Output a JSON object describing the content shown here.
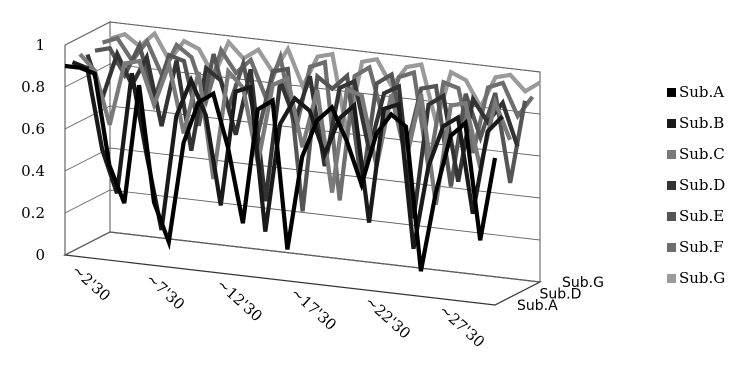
{
  "chart_data": {
    "type": "line",
    "projection": "3d",
    "title": "",
    "xlabel": "",
    "ylabel": "",
    "ylim": [
      0,
      1
    ],
    "y_ticks": [
      "0",
      "0.2",
      "0.4",
      "0.6",
      "0.8",
      "1"
    ],
    "x_tick_labels": [
      "~2'30",
      "~7'30",
      "~12'30",
      "~17'30",
      "~22'30",
      "~27'30"
    ],
    "x_tick_positions": [
      1,
      6,
      11,
      16,
      21,
      26
    ],
    "depth_tick_labels": [
      "Sub.A",
      "Sub.D",
      "Sub.G"
    ],
    "grid": true,
    "legend_position": "right",
    "series": [
      {
        "name": "Sub.A",
        "color": "#000000",
        "values": [
          0.9,
          0.9,
          0.88,
          0.45,
          0.28,
          0.85,
          0.3,
          0.12,
          0.6,
          0.8,
          0.85,
          0.6,
          0.25,
          0.8,
          0.85,
          0.15,
          0.6,
          0.78,
          0.85,
          0.7,
          0.5,
          0.75,
          0.85,
          0.8,
          0.12,
          0.5,
          0.78,
          0.85,
          0.3,
          0.7
        ]
      },
      {
        "name": "Sub.B",
        "color": "#1a1a1a",
        "values": [
          0.9,
          0.88,
          0.5,
          0.3,
          0.88,
          0.5,
          0.15,
          0.7,
          0.88,
          0.72,
          0.3,
          0.85,
          0.88,
          0.2,
          0.72,
          0.85,
          0.8,
          0.6,
          0.78,
          0.85,
          0.3,
          0.85,
          0.88,
          0.2,
          0.6,
          0.8,
          0.85,
          0.4,
          0.8,
          0.88
        ]
      },
      {
        "name": "Sub.C",
        "color": "#7a7a7a",
        "values": [
          0.92,
          0.85,
          0.6,
          0.9,
          0.92,
          0.72,
          0.92,
          0.6,
          0.9,
          0.4,
          0.92,
          0.85,
          0.5,
          0.88,
          0.92,
          0.6,
          0.88,
          0.4,
          0.9,
          0.88,
          0.55,
          0.9,
          0.6,
          0.92,
          0.4,
          0.88,
          0.9,
          0.6,
          0.92,
          0.75
        ]
      },
      {
        "name": "Sub.D",
        "color": "#333333",
        "values": [
          0.9,
          0.7,
          0.92,
          0.78,
          0.92,
          0.6,
          0.92,
          0.5,
          0.9,
          0.85,
          0.6,
          0.92,
          0.3,
          0.88,
          0.7,
          0.92,
          0.5,
          0.88,
          0.92,
          0.6,
          0.88,
          0.92,
          0.3,
          0.85,
          0.9,
          0.5,
          0.9,
          0.8,
          0.9,
          0.7
        ]
      },
      {
        "name": "Sub.E",
        "color": "#555555",
        "values": [
          0.9,
          0.92,
          0.8,
          0.95,
          0.7,
          0.92,
          0.9,
          0.6,
          0.95,
          0.7,
          0.92,
          0.6,
          0.9,
          0.92,
          0.25,
          0.9,
          0.85,
          0.92,
          0.4,
          0.9,
          0.95,
          0.6,
          0.9,
          0.92,
          0.45,
          0.9,
          0.7,
          0.92,
          0.5,
          0.9
        ]
      },
      {
        "name": "Sub.F",
        "color": "#6e6e6e",
        "values": [
          0.92,
          0.95,
          0.85,
          0.95,
          0.8,
          0.95,
          0.9,
          0.7,
          0.95,
          0.85,
          0.92,
          0.75,
          0.95,
          0.6,
          0.92,
          0.95,
          0.3,
          0.9,
          0.95,
          0.7,
          0.92,
          0.95,
          0.5,
          0.92,
          0.9,
          0.6,
          0.92,
          0.95,
          0.8,
          0.9
        ]
      },
      {
        "name": "Sub.G",
        "color": "#9a9a9a",
        "values": [
          0.92,
          0.95,
          0.9,
          0.97,
          0.85,
          0.95,
          0.92,
          0.8,
          0.97,
          0.9,
          0.95,
          0.85,
          0.97,
          0.8,
          0.95,
          0.97,
          0.6,
          0.95,
          0.97,
          0.85,
          0.95,
          0.97,
          0.7,
          0.95,
          0.92,
          0.8,
          0.95,
          0.97,
          0.9,
          0.95
        ]
      }
    ]
  }
}
